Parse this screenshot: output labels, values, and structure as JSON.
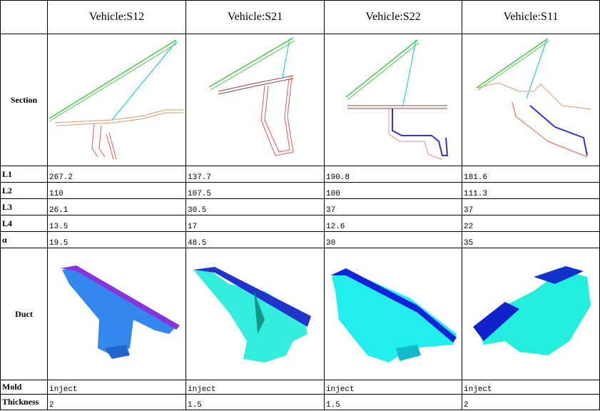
{
  "header": {
    "corner": "",
    "columns": [
      "Vehicle:S12",
      "Vehicle:S21",
      "Vehicle:S22",
      "Vehicle:S11"
    ]
  },
  "table": {
    "section_label": "Section",
    "duct_label": "Duct",
    "rows": [
      [
        "L1",
        "267.2",
        "137.7",
        "190.8",
        "181.6"
      ],
      [
        "L2",
        "110",
        "107.5",
        "100",
        "111.3"
      ],
      [
        "L3",
        "26.1",
        "30.5",
        "37",
        "37"
      ],
      [
        "L4",
        "13.5",
        "17",
        "12.6",
        "22"
      ],
      [
        "α",
        "19.5",
        "48.5",
        "30",
        "35"
      ]
    ],
    "bottom_rows": [
      [
        "Mold",
        "inject",
        "inject",
        "inject",
        "inject"
      ],
      [
        "Thickness",
        "2",
        "1.5",
        "1.5",
        "2"
      ]
    ]
  }
}
